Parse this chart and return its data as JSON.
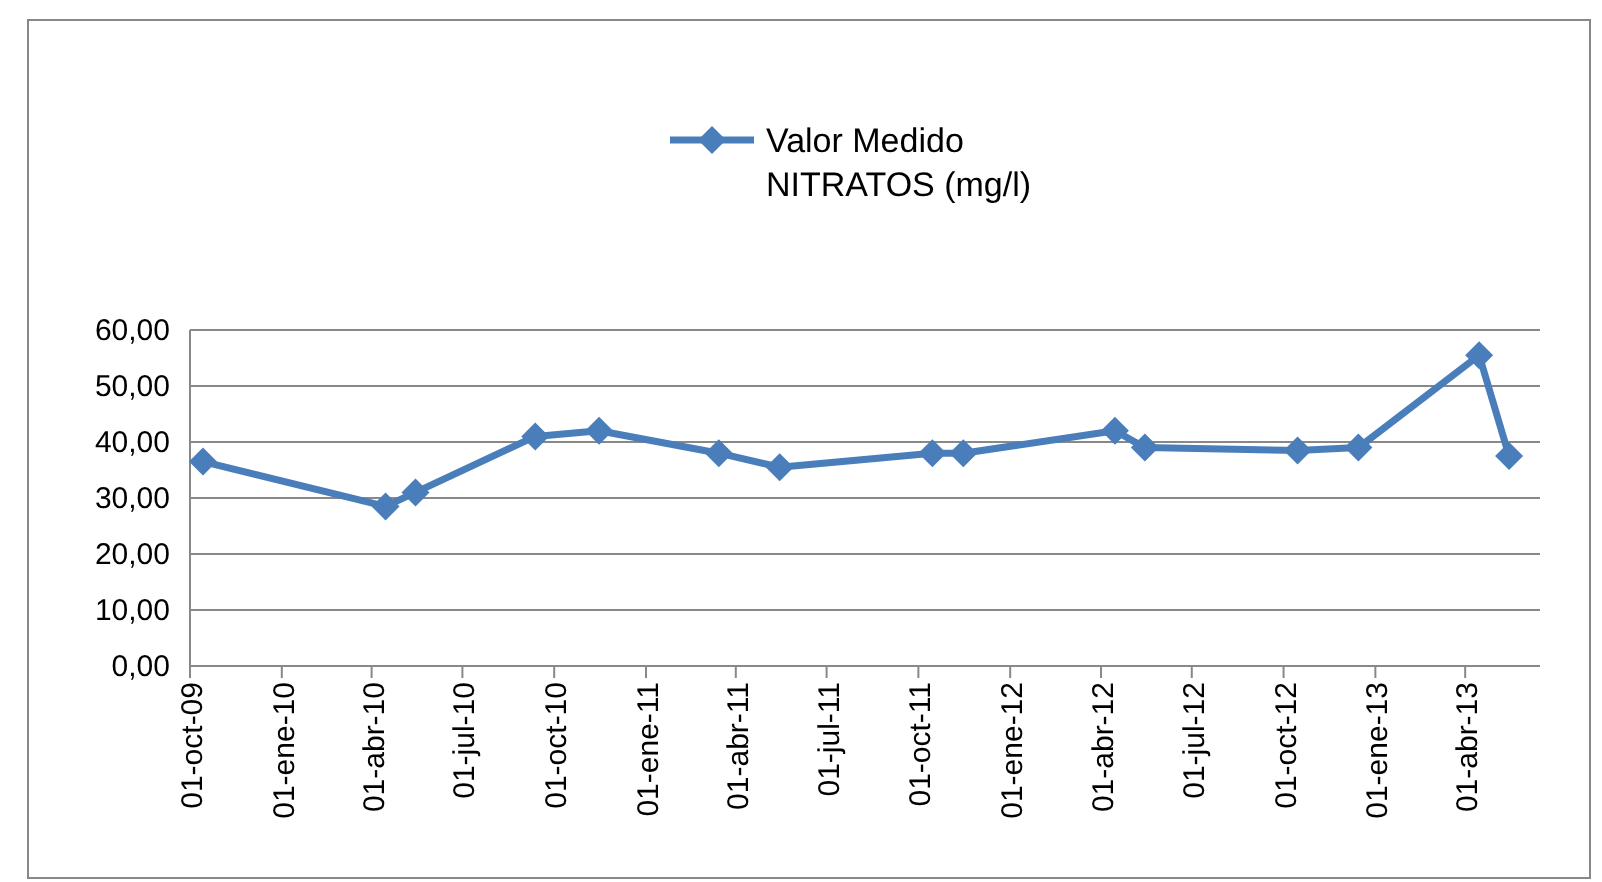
{
  "chart_data": {
    "type": "line",
    "x": [
      "2009-10-14",
      "2010-04-15",
      "2010-05-15",
      "2010-09-12",
      "2010-11-15",
      "2011-03-15",
      "2011-05-15",
      "2011-10-15",
      "2011-11-15",
      "2012-04-15",
      "2012-05-15",
      "2012-10-15",
      "2012-12-15",
      "2013-04-15",
      "2013-05-15"
    ],
    "series": [
      {
        "name": "Valor Medido NITRATOS (mg/l)",
        "color": "#4a7ebb",
        "values": [
          36.5,
          28.5,
          31,
          41,
          42,
          38,
          35.5,
          38,
          38,
          42,
          39,
          38.5,
          39,
          55.5,
          37.5
        ]
      }
    ],
    "xlim": [
      "2009-10-01",
      "2013-06-15"
    ],
    "xticks": [
      {
        "value": "2009-10-01",
        "label": "01-oct-09"
      },
      {
        "value": "2010-01-01",
        "label": "01-ene-10"
      },
      {
        "value": "2010-04-01",
        "label": "01-abr-10"
      },
      {
        "value": "2010-07-01",
        "label": "01-jul-10"
      },
      {
        "value": "2010-10-01",
        "label": "01-oct-10"
      },
      {
        "value": "2011-01-01",
        "label": "01-ene-11"
      },
      {
        "value": "2011-04-01",
        "label": "01-abr-11"
      },
      {
        "value": "2011-07-01",
        "label": "01-jul-11"
      },
      {
        "value": "2011-10-01",
        "label": "01-oct-11"
      },
      {
        "value": "2012-01-01",
        "label": "01-ene-12"
      },
      {
        "value": "2012-04-01",
        "label": "01-abr-12"
      },
      {
        "value": "2012-07-01",
        "label": "01-jul-12"
      },
      {
        "value": "2012-10-01",
        "label": "01-oct-12"
      },
      {
        "value": "2013-01-01",
        "label": "01-ene-13"
      },
      {
        "value": "2013-04-01",
        "label": "01-abr-13"
      }
    ],
    "ylim": [
      0,
      60
    ],
    "yticks": [
      {
        "value": 0,
        "label": "0,00"
      },
      {
        "value": 10,
        "label": "10,00"
      },
      {
        "value": 20,
        "label": "20,00"
      },
      {
        "value": 30,
        "label": "30,00"
      },
      {
        "value": 40,
        "label": "40,00"
      },
      {
        "value": 50,
        "label": "50,00"
      },
      {
        "value": 60,
        "label": "60,00"
      }
    ],
    "grid": "y",
    "legend": "top",
    "marker": "diamond",
    "line_style": "solid"
  }
}
